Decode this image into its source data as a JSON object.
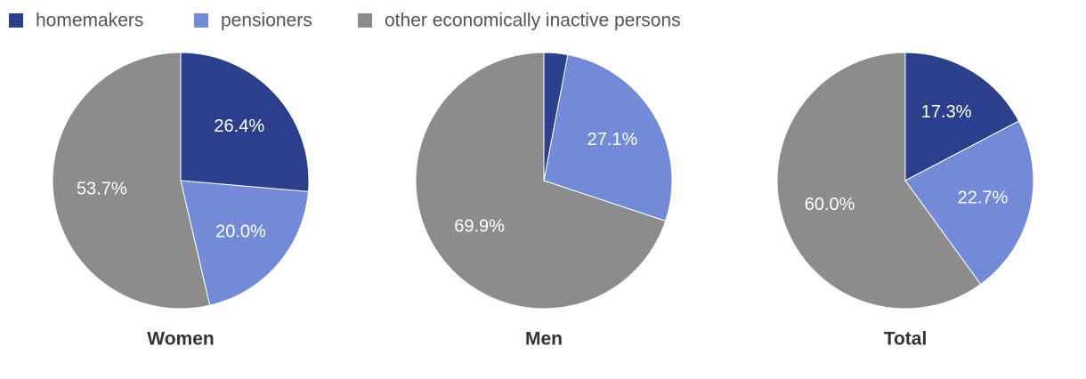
{
  "chart_data": [
    {
      "type": "pie",
      "title": "Women",
      "categories": [
        "homemakers",
        "pensioners",
        "other economically inactive persons"
      ],
      "values": [
        26.4,
        20.0,
        53.7
      ],
      "value_labels": [
        "26.4%",
        "20.0%",
        "53.7%"
      ],
      "colors": [
        "#2b3f8c",
        "#738ad9",
        "#8c8c8c"
      ],
      "legend": "top-left"
    },
    {
      "type": "pie",
      "title": "Men",
      "categories": [
        "homemakers",
        "pensioners",
        "other economically inactive persons"
      ],
      "values": [
        3.0,
        27.1,
        69.9
      ],
      "value_labels": [
        null,
        "27.1%",
        "69.9%"
      ],
      "colors": [
        "#2b3f8c",
        "#738ad9",
        "#8c8c8c"
      ]
    },
    {
      "type": "pie",
      "title": "Total",
      "categories": [
        "homemakers",
        "pensioners",
        "other economically inactive persons"
      ],
      "values": [
        17.3,
        22.7,
        60.0
      ],
      "value_labels": [
        "17.3%",
        "22.7%",
        "60.0%"
      ],
      "colors": [
        "#2b3f8c",
        "#738ad9",
        "#8c8c8c"
      ]
    }
  ]
}
